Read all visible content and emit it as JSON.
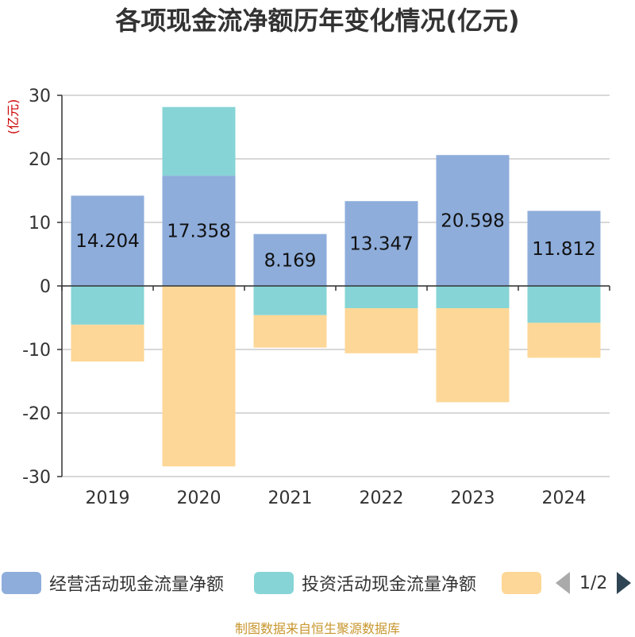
{
  "chart_data": {
    "type": "bar",
    "stacked": true,
    "title": "各项现金流净额历年变化情况(亿元)",
    "ylabel": "(亿元)",
    "categories": [
      "2019",
      "2020",
      "2021",
      "2022",
      "2023",
      "2024"
    ],
    "ylim": [
      -30,
      30
    ],
    "yticks": [
      30,
      20,
      10,
      0,
      -10,
      -20,
      -30
    ],
    "series": [
      {
        "name": "经营活动现金流量净额",
        "color": "#8eaddb",
        "values": [
          14.204,
          17.358,
          8.169,
          13.347,
          20.598,
          11.812
        ],
        "show_labels": true
      },
      {
        "name": "投资活动现金流量净额",
        "color": "#86d4d6",
        "values": [
          -6.1,
          10.8,
          -4.6,
          -3.5,
          -3.5,
          -5.8
        ],
        "show_labels": false
      },
      {
        "name": "",
        "color": "#fdd797",
        "values": [
          -5.8,
          -28.4,
          -5.1,
          -7.1,
          -14.8,
          -5.5
        ],
        "show_labels": false
      }
    ],
    "data_labels": [
      "14.204",
      "17.358",
      "8.169",
      "13.347",
      "20.598",
      "11.812"
    ]
  },
  "legend": {
    "items": [
      "经营活动现金流量净额",
      "投资活动现金流量净额",
      ""
    ],
    "page": "1/2"
  },
  "source": "制图数据来自恒生聚源数据库"
}
